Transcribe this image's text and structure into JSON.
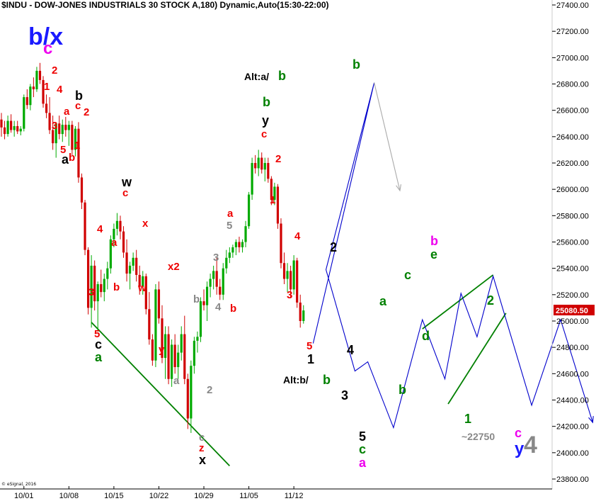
{
  "chart_title": "$INDU - DOW-JONES INDUSTRIALS 30 STOCK A,180) Dynamic,Auto(15:30-22:00)",
  "copyright": "© eSignal, 2016",
  "colors": {
    "up": "#00aa00",
    "down": "#d00000",
    "projection": "#0000cc",
    "alt_projection": "#aaaaaa",
    "trendline": "#008000",
    "price_box": "#d00000",
    "wave_red": "#ee0000",
    "wave_black": "#000000",
    "wave_green": "#008000",
    "wave_blue": "#1a1aff",
    "wave_magenta": "#ee00ee",
    "wave_gray": "#888888"
  },
  "chart_data": {
    "type": "candlestick",
    "symbol": "$INDU",
    "y_axis": {
      "side": "right",
      "min": 23800,
      "max": 27400,
      "ticks": [
        "27400.00",
        "27200.00",
        "27000.00",
        "26800.00",
        "26600.00",
        "26400.00",
        "26200.00",
        "26000.00",
        "25800.00",
        "25600.00",
        "25400.00",
        "25200.00",
        "25000.00",
        "24800.00",
        "24600.00",
        "24400.00",
        "24200.00",
        "24000.00",
        "23800.00"
      ]
    },
    "x_axis": {
      "tick_labels": [
        {
          "label": "10/01",
          "bar": 7
        },
        {
          "label": "10/08",
          "bar": 21
        },
        {
          "label": "10/15",
          "bar": 35
        },
        {
          "label": "10/22",
          "bar": 49
        },
        {
          "label": "10/29",
          "bar": 63
        },
        {
          "label": "11/05",
          "bar": 77
        },
        {
          "label": "11/12",
          "bar": 91
        }
      ]
    },
    "last_price": "25080.50",
    "bars": [
      [
        26530,
        26580,
        26400,
        26470
      ],
      [
        26470,
        26520,
        26380,
        26420
      ],
      [
        26420,
        26560,
        26400,
        26520
      ],
      [
        26520,
        26570,
        26430,
        26450
      ],
      [
        26450,
        26520,
        26400,
        26480
      ],
      [
        26480,
        26520,
        26420,
        26440
      ],
      [
        26440,
        26480,
        26410,
        26460
      ],
      [
        26460,
        26720,
        26440,
        26700
      ],
      [
        26700,
        26760,
        26610,
        26640
      ],
      [
        26640,
        26800,
        26600,
        26780
      ],
      [
        26780,
        26850,
        26700,
        26760
      ],
      [
        26760,
        26930,
        26740,
        26900
      ],
      [
        26900,
        26960,
        26800,
        26830
      ],
      [
        26830,
        26860,
        26620,
        26650
      ],
      [
        26650,
        26720,
        26540,
        26580
      ],
      [
        26580,
        26700,
        26420,
        26450
      ],
      [
        26450,
        26560,
        26300,
        26350
      ],
      [
        26350,
        26510,
        26240,
        26500
      ],
      [
        26500,
        26560,
        26380,
        26420
      ],
      [
        26420,
        26530,
        26360,
        26490
      ],
      [
        26490,
        26550,
        26400,
        26450
      ],
      [
        26450,
        26520,
        26330,
        26490
      ],
      [
        26490,
        26520,
        26260,
        26300
      ],
      [
        26300,
        26480,
        26250,
        26460
      ],
      [
        26460,
        26510,
        26050,
        26090
      ],
      [
        26090,
        26120,
        25850,
        25900
      ],
      [
        25900,
        25920,
        25500,
        25540
      ],
      [
        25540,
        25560,
        25050,
        25100
      ],
      [
        25100,
        25500,
        24950,
        25420
      ],
      [
        25420,
        25460,
        25080,
        25150
      ],
      [
        25150,
        25300,
        24920,
        25280
      ],
      [
        25280,
        25390,
        25180,
        25220
      ],
      [
        25220,
        25360,
        25150,
        25320
      ],
      [
        25320,
        25450,
        25240,
        25400
      ],
      [
        25400,
        25650,
        25360,
        25620
      ],
      [
        25620,
        25740,
        25560,
        25700
      ],
      [
        25700,
        25820,
        25650,
        25760
      ],
      [
        25760,
        25800,
        25620,
        25680
      ],
      [
        25680,
        25720,
        25480,
        25520
      ],
      [
        25520,
        25620,
        25300,
        25360
      ],
      [
        25360,
        25450,
        25240,
        25420
      ],
      [
        25420,
        25520,
        25380,
        25480
      ],
      [
        25480,
        25540,
        25300,
        25350
      ],
      [
        25350,
        25420,
        25200,
        25260
      ],
      [
        25260,
        25380,
        25200,
        25340
      ],
      [
        25340,
        25360,
        25050,
        25090
      ],
      [
        25090,
        25220,
        24820,
        24860
      ],
      [
        24860,
        24900,
        24660,
        24700
      ],
      [
        24700,
        25280,
        24650,
        25240
      ],
      [
        25240,
        25300,
        24980,
        25020
      ],
      [
        25020,
        25120,
        24680,
        24720
      ],
      [
        24720,
        24960,
        24560,
        24900
      ],
      [
        24900,
        24960,
        24520,
        24560
      ],
      [
        24560,
        24860,
        24500,
        24820
      ],
      [
        24820,
        24900,
        24600,
        24650
      ],
      [
        24650,
        24820,
        24560,
        24760
      ],
      [
        24760,
        24960,
        24700,
        24900
      ],
      [
        24900,
        25040,
        24520,
        24560
      ],
      [
        24560,
        24600,
        24180,
        24260
      ],
      [
        24260,
        24700,
        24150,
        24660
      ],
      [
        24660,
        24880,
        24600,
        24850
      ],
      [
        24850,
        24920,
        24760,
        24880
      ],
      [
        24880,
        25180,
        24840,
        25150
      ],
      [
        25150,
        25240,
        25080,
        25120
      ],
      [
        25120,
        25300,
        25000,
        25260
      ],
      [
        25260,
        25360,
        25180,
        25320
      ],
      [
        25320,
        25420,
        25240,
        25380
      ],
      [
        25380,
        25480,
        25200,
        25260
      ],
      [
        25260,
        25320,
        25160,
        25200
      ],
      [
        25200,
        25440,
        25160,
        25400
      ],
      [
        25400,
        25540,
        25360,
        25480
      ],
      [
        25480,
        25560,
        25440,
        25520
      ],
      [
        25520,
        25580,
        25480,
        25560
      ],
      [
        25560,
        25620,
        25500,
        25600
      ],
      [
        25600,
        25640,
        25520,
        25560
      ],
      [
        25560,
        25620,
        25520,
        25600
      ],
      [
        25600,
        25760,
        25560,
        25720
      ],
      [
        25720,
        25980,
        25700,
        25960
      ],
      [
        25960,
        26240,
        25920,
        26200
      ],
      [
        26200,
        26260,
        26120,
        26160
      ],
      [
        26160,
        26300,
        26100,
        26240
      ],
      [
        26240,
        26280,
        26120,
        26150
      ],
      [
        26150,
        26240,
        26060,
        26200
      ],
      [
        26200,
        26240,
        26050,
        26080
      ],
      [
        26080,
        26100,
        25880,
        25920
      ],
      [
        25920,
        26050,
        25880,
        26020
      ],
      [
        26020,
        26040,
        25700,
        25740
      ],
      [
        25740,
        25780,
        25400,
        25440
      ],
      [
        25440,
        25520,
        25280,
        25320
      ],
      [
        25320,
        25440,
        25220,
        25380
      ],
      [
        25380,
        25420,
        25180,
        25240
      ],
      [
        25240,
        25500,
        25200,
        25460
      ],
      [
        25460,
        25480,
        25100,
        25140
      ],
      [
        25140,
        25200,
        24950,
        25000
      ],
      [
        25000,
        25120,
        24980,
        25080
      ]
    ],
    "projection": [
      {
        "bar": 97,
        "price": 24830
      },
      {
        "bar": 116,
        "price": 26810
      },
      {
        "bar": 101,
        "price": 25390
      },
      {
        "bar": 110,
        "price": 24620
      },
      {
        "bar": 114,
        "price": 24690
      },
      {
        "bar": 122,
        "price": 24190
      },
      {
        "bar": 131,
        "price": 25010
      },
      {
        "bar": 138,
        "price": 24560
      },
      {
        "bar": 143,
        "price": 25210
      },
      {
        "bar": 148,
        "price": 24880
      },
      {
        "bar": 153,
        "price": 25340
      },
      {
        "bar": 165,
        "price": 24360
      },
      {
        "bar": 174,
        "price": 25010
      },
      {
        "bar": 184,
        "price": 24230
      }
    ],
    "alt_projection": [
      {
        "bar": 116,
        "price": 26810
      },
      {
        "bar": 124,
        "price": 25990
      }
    ],
    "trendlines": [
      {
        "from": {
          "bar": 28,
          "price": 24990
        },
        "to": {
          "bar": 71,
          "price": 23900
        }
      },
      {
        "from": {
          "bar": 131,
          "price": 24940
        },
        "to": {
          "bar": 153,
          "price": 25350
        }
      },
      {
        "from": {
          "bar": 139,
          "price": 24370
        },
        "to": {
          "bar": 157,
          "price": 25060
        }
      }
    ],
    "wave_labels": [
      {
        "text": "b/x",
        "color": "blue",
        "size": "xl"
      },
      {
        "text": "c",
        "color": "magenta",
        "size": "l"
      },
      {
        "text": "2",
        "color": "red"
      },
      {
        "text": "1",
        "color": "red"
      },
      {
        "text": "4",
        "color": "red"
      },
      {
        "text": "b",
        "color": "black",
        "size": "m"
      },
      {
        "text": "c",
        "color": "red"
      },
      {
        "text": "2",
        "color": "red"
      },
      {
        "text": "a",
        "color": "red"
      },
      {
        "text": "3",
        "color": "red"
      },
      {
        "text": "1",
        "color": "red"
      },
      {
        "text": "5",
        "color": "red"
      },
      {
        "text": "b",
        "color": "red"
      },
      {
        "text": "a",
        "color": "black",
        "size": "m"
      },
      {
        "text": "w",
        "color": "black",
        "size": "m"
      },
      {
        "text": "c",
        "color": "red"
      },
      {
        "text": "x",
        "color": "red"
      },
      {
        "text": "4",
        "color": "red"
      },
      {
        "text": "a",
        "color": "red"
      },
      {
        "text": "3",
        "color": "red"
      },
      {
        "text": "b",
        "color": "red"
      },
      {
        "text": "w",
        "color": "red"
      },
      {
        "text": "5",
        "color": "red"
      },
      {
        "text": "c",
        "color": "black",
        "size": "m"
      },
      {
        "text": "a",
        "color": "green",
        "size": "m"
      },
      {
        "text": "x2",
        "color": "red"
      },
      {
        "text": "y",
        "color": "red"
      },
      {
        "text": "b",
        "color": "gray"
      },
      {
        "text": "a",
        "color": "gray"
      },
      {
        "text": "2",
        "color": "gray"
      },
      {
        "text": "c",
        "color": "gray"
      },
      {
        "text": "z",
        "color": "red"
      },
      {
        "text": "x",
        "color": "black",
        "size": "m"
      },
      {
        "text": "3",
        "color": "gray"
      },
      {
        "text": "5",
        "color": "gray"
      },
      {
        "text": "4",
        "color": "gray"
      },
      {
        "text": "a",
        "color": "red"
      },
      {
        "text": "b",
        "color": "red"
      },
      {
        "text": "Alt:a/",
        "color": "black",
        "size": "s"
      },
      {
        "text": "b",
        "color": "green",
        "size": "m"
      },
      {
        "text": "b",
        "color": "green",
        "size": "m"
      },
      {
        "text": "y",
        "color": "black",
        "size": "m"
      },
      {
        "text": "c",
        "color": "red"
      },
      {
        "text": "2",
        "color": "red"
      },
      {
        "text": "1",
        "color": "red"
      },
      {
        "text": "4",
        "color": "red"
      },
      {
        "text": "3",
        "color": "red"
      },
      {
        "text": "5",
        "color": "red"
      },
      {
        "text": "1",
        "color": "black",
        "size": "m"
      },
      {
        "text": "Alt:b/",
        "color": "black",
        "size": "s"
      },
      {
        "text": "b",
        "color": "green",
        "size": "m"
      },
      {
        "text": "b",
        "color": "green",
        "size": "m"
      },
      {
        "text": "2",
        "color": "black",
        "size": "m"
      },
      {
        "text": "4",
        "color": "black",
        "size": "m"
      },
      {
        "text": "3",
        "color": "black",
        "size": "m"
      },
      {
        "text": "5",
        "color": "black",
        "size": "m"
      },
      {
        "text": "c",
        "color": "green",
        "size": "m"
      },
      {
        "text": "a",
        "color": "magenta",
        "size": "m"
      },
      {
        "text": "a",
        "color": "green",
        "size": "m"
      },
      {
        "text": "c",
        "color": "green",
        "size": "m"
      },
      {
        "text": "b",
        "color": "green",
        "size": "m"
      },
      {
        "text": "d",
        "color": "green",
        "size": "m"
      },
      {
        "text": "b",
        "color": "magenta",
        "size": "m"
      },
      {
        "text": "e",
        "color": "green",
        "size": "m"
      },
      {
        "text": "1",
        "color": "green",
        "size": "m"
      },
      {
        "text": "2",
        "color": "green",
        "size": "m"
      },
      {
        "text": "~22750",
        "color": "gray",
        "size": "s"
      },
      {
        "text": "c",
        "color": "magenta",
        "size": "m"
      },
      {
        "text": "y",
        "color": "blue",
        "size": "l"
      },
      {
        "text": "4",
        "color": "gray",
        "size": "xl"
      }
    ]
  }
}
